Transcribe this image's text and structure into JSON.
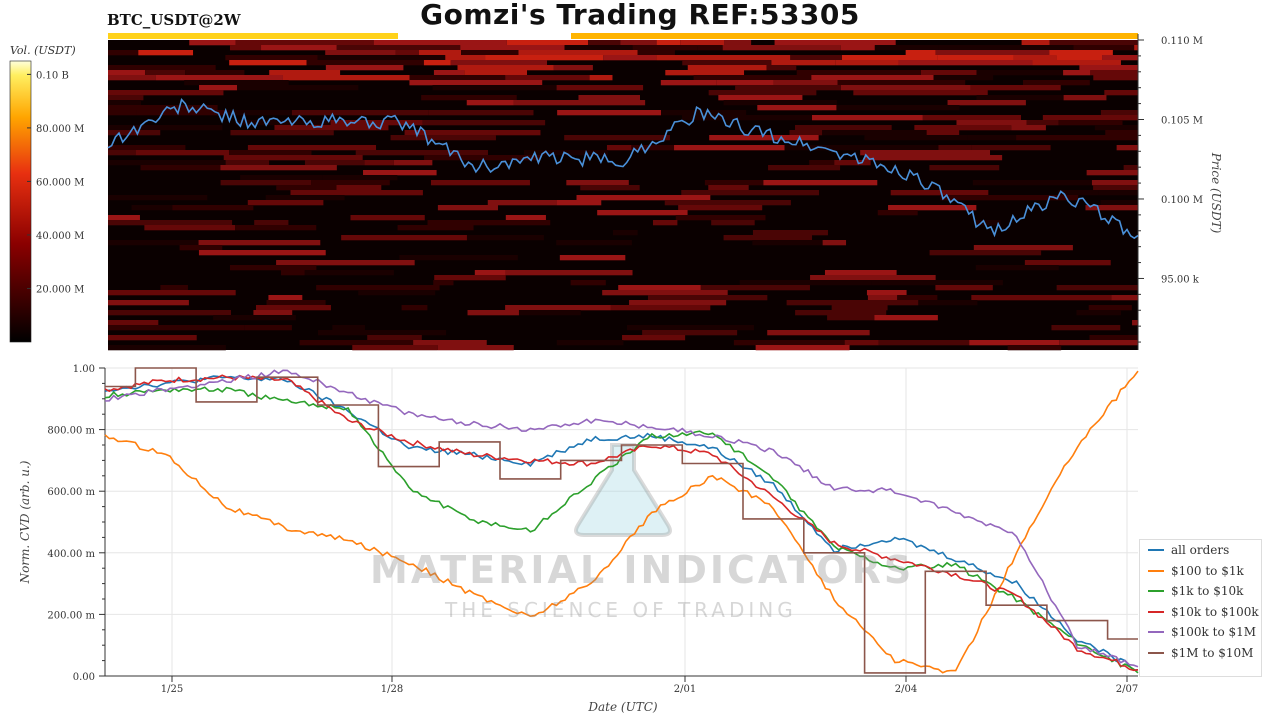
{
  "header": {
    "symbol": "BTC_USDT@2W",
    "title": "Gomzi's Trading REF:53305"
  },
  "colorbar": {
    "label": "Vol. (USDT)",
    "ticks": [
      "0.10 B",
      "80.000 M",
      "60.000 M",
      "40.000 M",
      "20.000 M"
    ],
    "tick_values": [
      100000000,
      80000000,
      60000000,
      40000000,
      20000000
    ]
  },
  "watermark": {
    "text": "MATERIAL INDICATORS",
    "subtext": "THE SCIENCE OF TRADING"
  },
  "colors": {
    "all_orders": "#1f77b4",
    "r100_1k": "#ff7f0e",
    "r1k_10k": "#2ca02c",
    "r10k_100k": "#d62728",
    "r100k_1m": "#9467bd",
    "r1m_10m": "#8c564b",
    "heatmap_low": "#000000",
    "heatmap_high": "#ffffcc"
  },
  "chart_data": [
    {
      "type": "heatmap",
      "title": "",
      "ylabel": "Price (USDT)",
      "y_ticks": [
        "0.110 M",
        "0.105 M",
        "0.100 M",
        "95.00 k"
      ],
      "y_tick_values": [
        110000,
        105000,
        100000,
        95000
      ],
      "ylim": [
        90000,
        110000
      ],
      "x": [
        "1/25",
        "1/28",
        "2/01",
        "2/04",
        "2/07"
      ],
      "price_series": {
        "name": "",
        "color": "#4a90d9",
        "x_days": [
          0,
          1,
          2,
          3,
          4,
          5,
          6,
          7,
          8,
          9,
          10,
          11,
          12,
          13,
          14
        ],
        "values": [
          103500,
          105900,
          104800,
          104900,
          104800,
          102000,
          102600,
          102400,
          105400,
          104000,
          102800,
          101400,
          98000,
          100300,
          97700
        ]
      }
    },
    {
      "type": "line",
      "title": "",
      "xlabel": "Date (UTC)",
      "ylabel": "Norm. CVD (arb. u.)",
      "ylim": [
        0,
        1
      ],
      "y_ticks": [
        "0.00",
        "200.00 m",
        "400.00 m",
        "600.00 m",
        "800.00 m",
        "1.00"
      ],
      "y_tick_values": [
        0,
        0.2,
        0.4,
        0.6,
        0.8,
        1.0
      ],
      "x_ticks": [
        "1/25",
        "1/28",
        "2/01",
        "2/04",
        "2/07"
      ],
      "legend_position": "bottom-right",
      "series": [
        {
          "name": "all orders",
          "values": [
            0.93,
            0.95,
            0.97,
            0.96,
            0.86,
            0.74,
            0.72,
            0.69,
            0.77,
            0.78,
            0.74,
            0.62,
            0.41,
            0.45,
            0.38,
            0.3,
            0.12,
            0.02
          ]
        },
        {
          "name": "$100 to $1k",
          "values": [
            0.78,
            0.72,
            0.55,
            0.48,
            0.44,
            0.37,
            0.27,
            0.19,
            0.3,
            0.53,
            0.65,
            0.55,
            0.25,
            0.05,
            0.01,
            0.4,
            0.75,
            0.99
          ]
        },
        {
          "name": "$1k to $10k",
          "values": [
            0.91,
            0.93,
            0.93,
            0.89,
            0.87,
            0.61,
            0.51,
            0.47,
            0.63,
            0.78,
            0.79,
            0.64,
            0.42,
            0.35,
            0.36,
            0.25,
            0.11,
            0.01
          ]
        },
        {
          "name": "$10k to $100k",
          "values": [
            0.93,
            0.96,
            0.97,
            0.96,
            0.83,
            0.76,
            0.72,
            0.7,
            0.69,
            0.75,
            0.72,
            0.58,
            0.43,
            0.38,
            0.33,
            0.26,
            0.09,
            0.02
          ]
        },
        {
          "name": "$100k to $1M",
          "values": [
            0.9,
            0.93,
            0.96,
            0.99,
            0.92,
            0.85,
            0.82,
            0.8,
            0.83,
            0.81,
            0.78,
            0.73,
            0.61,
            0.6,
            0.53,
            0.46,
            0.1,
            0.03
          ]
        },
        {
          "name": "$1M to $10M",
          "values": [
            0.94,
            1.0,
            0.89,
            0.97,
            0.88,
            0.68,
            0.76,
            0.64,
            0.7,
            0.75,
            0.69,
            0.51,
            0.4,
            0.01,
            0.34,
            0.23,
            0.18,
            0.12
          ]
        }
      ]
    }
  ]
}
